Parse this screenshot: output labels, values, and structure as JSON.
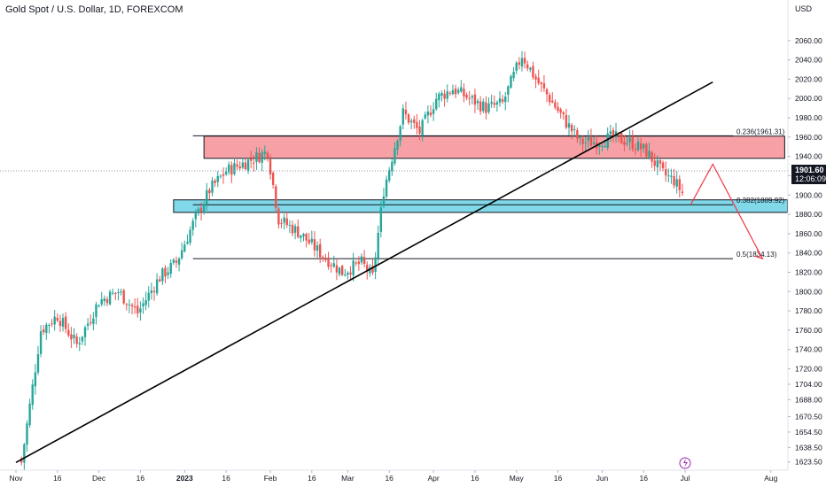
{
  "header": {
    "symbol_title": "Gold Spot / U.S. Dollar, 1D, FOREXCOM",
    "currency": "USD"
  },
  "price_tag": {
    "price": "1901.60",
    "countdown": "12:06:09"
  },
  "colors": {
    "up": "#26a69a",
    "down": "#ef5350",
    "resistance_zone": "#f7a1a6",
    "support_zone": "#80d8e8",
    "projection": "#f23645",
    "trendline": "#000000"
  },
  "chart_data": {
    "type": "candlestick",
    "instrument": "Gold Spot / U.S. Dollar",
    "interval": "1D",
    "ylim": [
      1615,
      2080
    ],
    "y_ticks": [
      2060,
      2040,
      2020,
      2000,
      1980,
      1960,
      1940,
      1920,
      1900,
      1880,
      1860,
      1840,
      1820,
      1800,
      1780,
      1760,
      1740,
      1720,
      1704,
      1688,
      1670.5,
      1654.5,
      1638.5,
      1623.5
    ],
    "y_tick_labels": [
      "2060.00",
      "2040.00",
      "2020.00",
      "2000.00",
      "1980.00",
      "1960.00",
      "1940.00",
      "1920.00",
      "1900.00",
      "1880.00",
      "1860.00",
      "1840.00",
      "1820.00",
      "1800.00",
      "1780.00",
      "1760.00",
      "1740.00",
      "1720.00",
      "1704.00",
      "1688.00",
      "1670.50",
      "1654.50",
      "1638.50",
      "1623.50"
    ],
    "x_labels": [
      {
        "label": "Nov",
        "day": 0
      },
      {
        "label": "16",
        "day": 15
      },
      {
        "label": "Dec",
        "day": 30
      },
      {
        "label": "16",
        "day": 45
      },
      {
        "label": "2023",
        "day": 61
      },
      {
        "label": "16",
        "day": 76
      },
      {
        "label": "Feb",
        "day": 92
      },
      {
        "label": "16",
        "day": 107
      },
      {
        "label": "Mar",
        "day": 120
      },
      {
        "label": "16",
        "day": 135
      },
      {
        "label": "Apr",
        "day": 151
      },
      {
        "label": "16",
        "day": 166
      },
      {
        "label": "May",
        "day": 181
      },
      {
        "label": "16",
        "day": 196
      },
      {
        "label": "Jun",
        "day": 212
      },
      {
        "label": "16",
        "day": 227
      },
      {
        "label": "Jul",
        "day": 242
      },
      {
        "label": "Aug",
        "day": 273
      }
    ],
    "key_points": [
      {
        "day": 2,
        "price": 1623
      },
      {
        "day": 9,
        "price": 1760
      },
      {
        "day": 15,
        "price": 1775
      },
      {
        "day": 22,
        "price": 1745
      },
      {
        "day": 30,
        "price": 1790
      },
      {
        "day": 37,
        "price": 1800
      },
      {
        "day": 44,
        "price": 1778
      },
      {
        "day": 52,
        "price": 1815
      },
      {
        "day": 58,
        "price": 1830
      },
      {
        "day": 64,
        "price": 1870
      },
      {
        "day": 70,
        "price": 1905
      },
      {
        "day": 76,
        "price": 1925
      },
      {
        "day": 84,
        "price": 1935
      },
      {
        "day": 91,
        "price": 1945
      },
      {
        "day": 95,
        "price": 1875
      },
      {
        "day": 102,
        "price": 1862
      },
      {
        "day": 110,
        "price": 1840
      },
      {
        "day": 118,
        "price": 1820
      },
      {
        "day": 125,
        "price": 1830
      },
      {
        "day": 129,
        "price": 1815
      },
      {
        "day": 133,
        "price": 1905
      },
      {
        "day": 140,
        "price": 1985
      },
      {
        "day": 146,
        "price": 1965
      },
      {
        "day": 152,
        "price": 2000
      },
      {
        "day": 158,
        "price": 2010
      },
      {
        "day": 164,
        "price": 2000
      },
      {
        "day": 170,
        "price": 1990
      },
      {
        "day": 176,
        "price": 1995
      },
      {
        "day": 183,
        "price": 2045
      },
      {
        "day": 188,
        "price": 2020
      },
      {
        "day": 193,
        "price": 2000
      },
      {
        "day": 199,
        "price": 1975
      },
      {
        "day": 204,
        "price": 1955
      },
      {
        "day": 210,
        "price": 1955
      },
      {
        "day": 216,
        "price": 1960
      },
      {
        "day": 222,
        "price": 1955
      },
      {
        "day": 228,
        "price": 1945
      },
      {
        "day": 234,
        "price": 1922
      },
      {
        "day": 238,
        "price": 1915
      },
      {
        "day": 241,
        "price": 1902
      }
    ],
    "fib_levels": [
      {
        "label": "0.236(1961.31)",
        "price": 1961.31
      },
      {
        "label": "0.382(1889.92)",
        "price": 1889.92
      },
      {
        "label": "0.5(1834.13)",
        "price": 1834.13
      }
    ],
    "zones": [
      {
        "kind": "resistance",
        "price_low": 1938,
        "price_high": 1961,
        "day_start": 68,
        "day_end": 278
      },
      {
        "kind": "support",
        "price_low": 1882,
        "price_high": 1895,
        "day_start": 57,
        "day_end": 279
      }
    ],
    "trendline": {
      "from": {
        "day": 0,
        "price": 1623
      },
      "to": {
        "day": 252,
        "price": 2017
      }
    },
    "projection_path": [
      {
        "day": 244,
        "price": 1890
      },
      {
        "day": 252,
        "price": 1932
      },
      {
        "day": 270,
        "price": 1834
      }
    ],
    "current_price": 1901.6,
    "grid": false,
    "legend": "none"
  }
}
